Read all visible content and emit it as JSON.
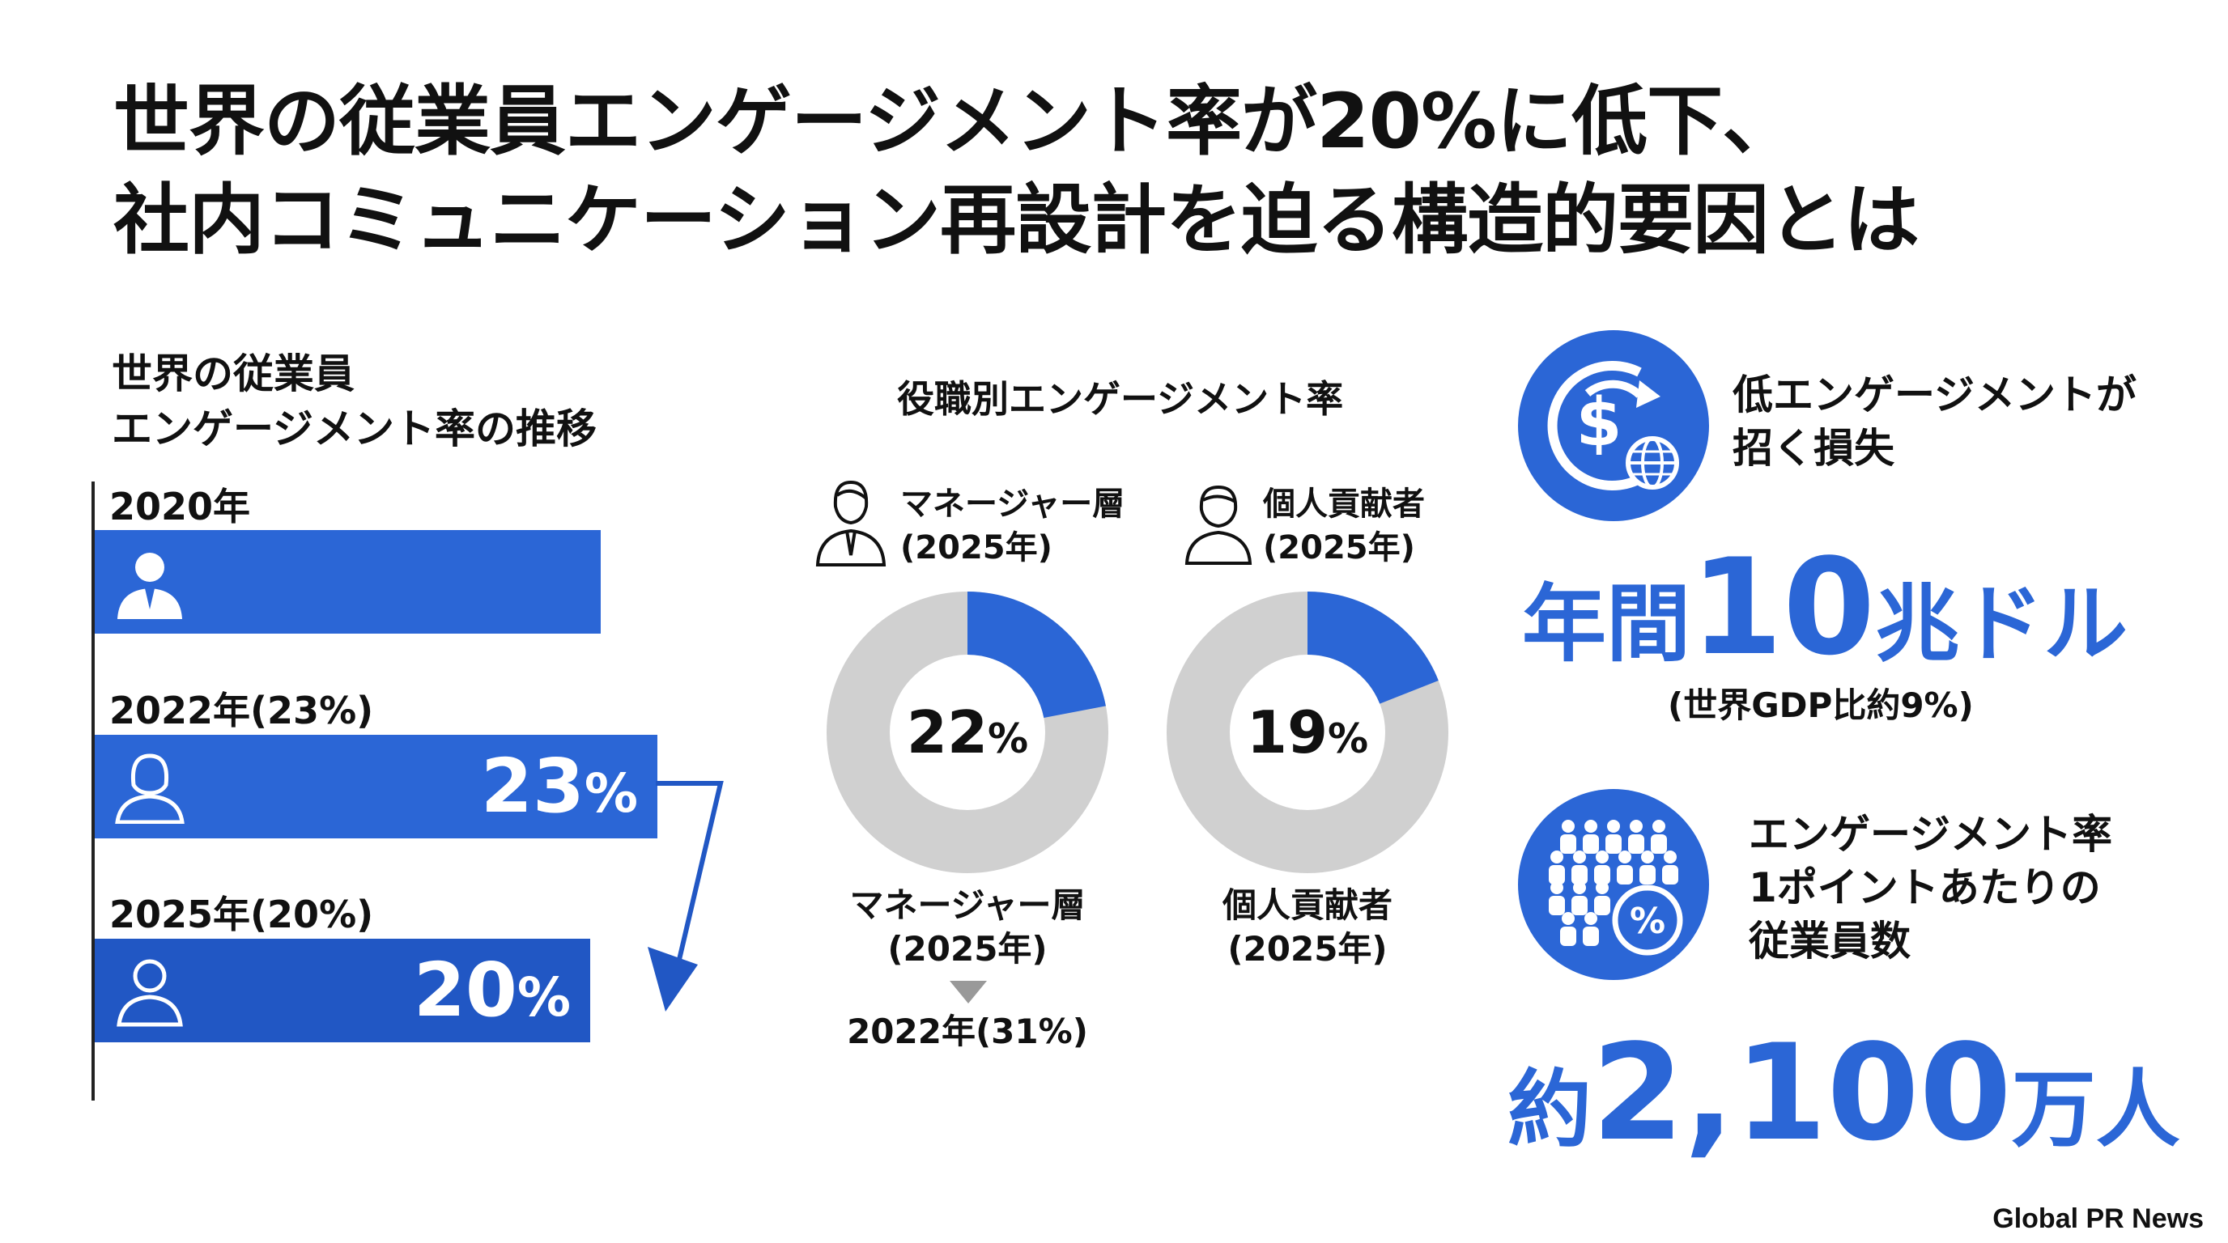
{
  "title": {
    "line1": "世界の従業員エンゲージメント率が20%に低下、",
    "line2": "社内コミュニケーション再設計を迫る構造的要因とは"
  },
  "trend": {
    "heading_line1": "世界の従業員",
    "heading_line2": "エンゲージメント率の推移",
    "bars": [
      {
        "label": "2020年",
        "value": null,
        "value_text": "",
        "icon": "businessman-icon",
        "color": "#2b66d6"
      },
      {
        "label": "2022年(23%)",
        "value": 23,
        "value_text": "23",
        "pct": "%",
        "icon": "woman-icon",
        "color": "#2b66d6"
      },
      {
        "label": "2025年(20%)",
        "value": 20,
        "value_text": "20",
        "pct": "%",
        "icon": "person-icon",
        "color": "#2157c4"
      }
    ]
  },
  "chart_data": [
    {
      "type": "bar",
      "title": "世界の従業員エンゲージメント率の推移",
      "categories": [
        "2020年",
        "2022年",
        "2025年"
      ],
      "values": [
        null,
        23,
        20
      ],
      "unit": "%"
    },
    {
      "type": "pie",
      "title": "役職別エンゲージメント率",
      "series": [
        {
          "name": "マネージャー層(2025年)",
          "values": [
            22,
            78
          ]
        },
        {
          "name": "個人貢献者(2025年)",
          "values": [
            19,
            81
          ]
        }
      ]
    }
  ],
  "donuts": {
    "heading": "役職別エンゲージメント率",
    "items": [
      {
        "head_line1": "マネージャー層",
        "head_line2": "(2025年)",
        "value": 22,
        "value_text": "22",
        "pct": "%",
        "foot_line1": "マネージャー層",
        "foot_line2": "(2025年)",
        "prev": "2022年(31%)",
        "icon": "manager-icon"
      },
      {
        "head_line1": "個人貢献者",
        "head_line2": "(2025年)",
        "value": 19,
        "value_text": "19",
        "pct": "%",
        "foot_line1": "個人貢献者",
        "foot_line2": "(2025年)",
        "icon": "person-outline-icon"
      }
    ],
    "colors": {
      "fill": "#2b66d6",
      "track": "#d0d0d0"
    }
  },
  "loss": {
    "heading_line1": "低エンゲージメントが",
    "heading_line2": "招く損失",
    "big_prefix": "年間",
    "big_number": "10",
    "big_suffix": "兆ドル",
    "note": "(世界GDP比約9%)",
    "icon": "dollar-cycle-globe-icon"
  },
  "employees": {
    "heading_line1": "エンゲージメント率",
    "heading_line2": "1ポイントあたりの",
    "heading_line3": "従業員数",
    "big_prefix": "約",
    "big_number": "2,100",
    "big_suffix": "万人",
    "icon": "crowd-percent-icon"
  },
  "footer": "Global PR News",
  "colors": {
    "accent": "#2b66d6",
    "accent_dark": "#2157c4",
    "text": "#111111"
  }
}
